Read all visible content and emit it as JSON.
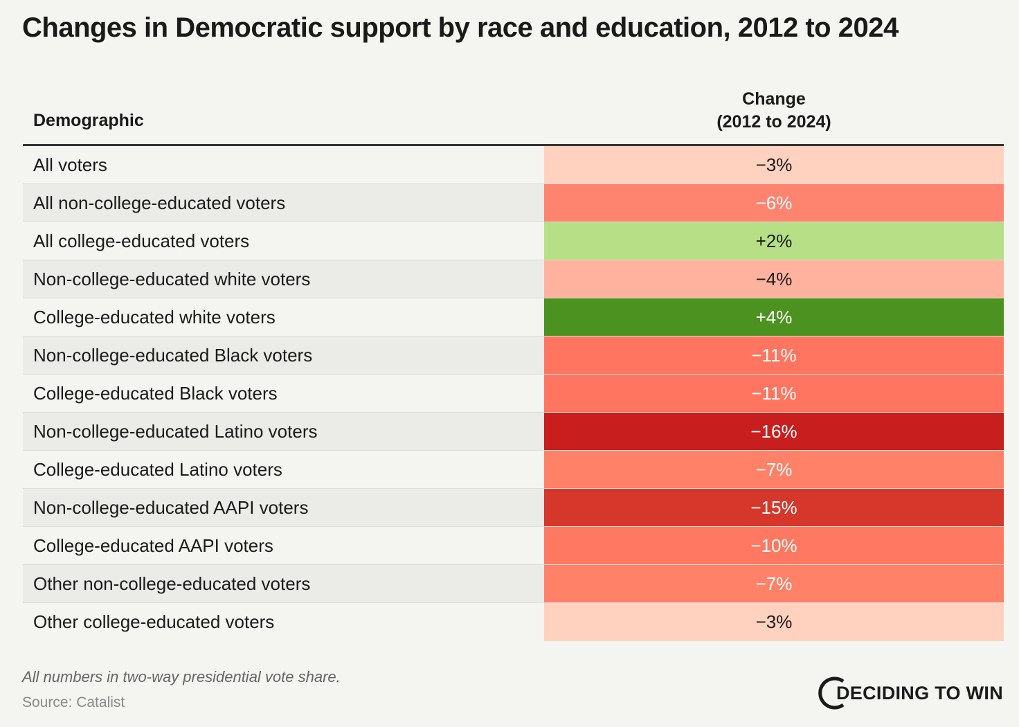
{
  "title": "Changes in Democratic support by race and education, 2012 to 2024",
  "note": "All numbers in two-way presidential vote share.",
  "source": "Source: Catalist",
  "logo": "DECIDING TO WIN",
  "chart_data": {
    "type": "table",
    "title": "Changes in Democratic support by race and education, 2012 to 2024",
    "columns": [
      "Demographic",
      "Change\n(2012 to 2024)"
    ],
    "col_header_lines": [
      "Change",
      "(2012 to 2024)"
    ],
    "rows": [
      {
        "label": "All voters",
        "value": -3,
        "text": "−3%",
        "color": "#ffd1bf",
        "text_color": "#1a1a1a"
      },
      {
        "label": "All non-college-educated voters",
        "value": -6,
        "text": "−6%",
        "color": "#ff8470",
        "text_color": "#ffffff"
      },
      {
        "label": "All college-educated voters",
        "value": 2,
        "text": "+2%",
        "color": "#b6df86",
        "text_color": "#1a1a1a"
      },
      {
        "label": "Non-college-educated white voters",
        "value": -4,
        "text": "−4%",
        "color": "#ffb39f",
        "text_color": "#1a1a1a"
      },
      {
        "label": "College-educated white voters",
        "value": 4,
        "text": "+4%",
        "color": "#4c9220",
        "text_color": "#ffffff"
      },
      {
        "label": "Non-college-educated Black voters",
        "value": -11,
        "text": "−11%",
        "color": "#ff755f",
        "text_color": "#ffffff"
      },
      {
        "label": "College-educated Black voters",
        "value": -11,
        "text": "−11%",
        "color": "#ff755f",
        "text_color": "#ffffff"
      },
      {
        "label": "Non-college-educated Latino voters",
        "value": -16,
        "text": "−16%",
        "color": "#c81e1e",
        "text_color": "#ffffff"
      },
      {
        "label": "College-educated Latino voters",
        "value": -7,
        "text": "−7%",
        "color": "#ff8168",
        "text_color": "#ffffff"
      },
      {
        "label": "Non-college-educated AAPI voters",
        "value": -15,
        "text": "−15%",
        "color": "#d6372b",
        "text_color": "#ffffff"
      },
      {
        "label": "College-educated AAPI voters",
        "value": -10,
        "text": "−10%",
        "color": "#ff7862",
        "text_color": "#ffffff"
      },
      {
        "label": "Other non-college-educated voters",
        "value": -7,
        "text": "−7%",
        "color": "#ff8168",
        "text_color": "#ffffff"
      },
      {
        "label": "Other college-educated voters",
        "value": -3,
        "text": "−3%",
        "color": "#ffd1bf",
        "text_color": "#1a1a1a"
      }
    ]
  }
}
